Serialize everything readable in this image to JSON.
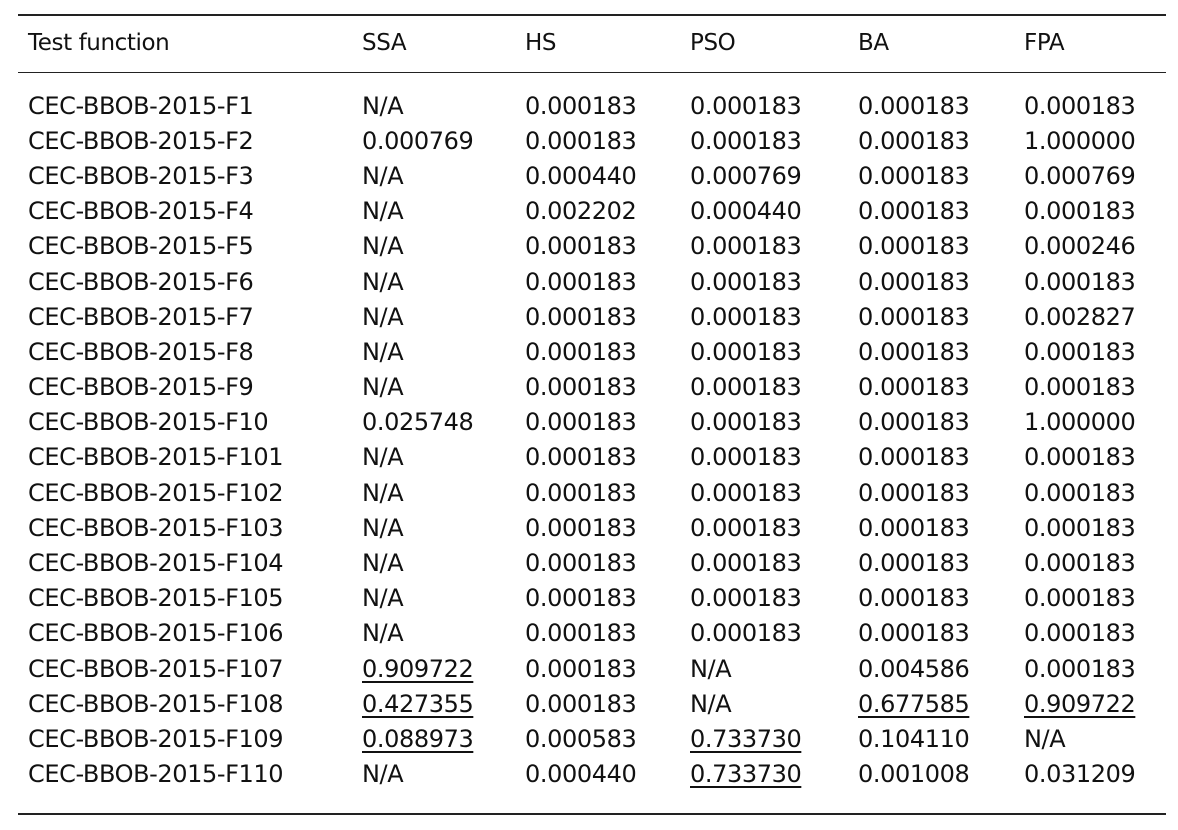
{
  "table": {
    "headers": [
      "Test function",
      "SSA",
      "HS",
      "PSO",
      "BA",
      "FPA"
    ],
    "rows": [
      [
        "CEC-BBOB-2015-F1",
        "N/A",
        "0.000183",
        "0.000183",
        "0.000183",
        "0.000183"
      ],
      [
        "CEC-BBOB-2015-F2",
        "0.000769",
        "0.000183",
        "0.000183",
        "0.000183",
        "1.000000"
      ],
      [
        "CEC-BBOB-2015-F3",
        "N/A",
        "0.000440",
        "0.000769",
        "0.000183",
        "0.000769"
      ],
      [
        "CEC-BBOB-2015-F4",
        "N/A",
        "0.002202",
        "0.000440",
        "0.000183",
        "0.000183"
      ],
      [
        "CEC-BBOB-2015-F5",
        "N/A",
        "0.000183",
        "0.000183",
        "0.000183",
        "0.000246"
      ],
      [
        "CEC-BBOB-2015-F6",
        "N/A",
        "0.000183",
        "0.000183",
        "0.000183",
        "0.000183"
      ],
      [
        "CEC-BBOB-2015-F7",
        "N/A",
        "0.000183",
        "0.000183",
        "0.000183",
        "0.002827"
      ],
      [
        "CEC-BBOB-2015-F8",
        "N/A",
        "0.000183",
        "0.000183",
        "0.000183",
        "0.000183"
      ],
      [
        "CEC-BBOB-2015-F9",
        "N/A",
        "0.000183",
        "0.000183",
        "0.000183",
        "0.000183"
      ],
      [
        "CEC-BBOB-2015-F10",
        "0.025748",
        "0.000183",
        "0.000183",
        "0.000183",
        "1.000000"
      ],
      [
        "CEC-BBOB-2015-F101",
        "N/A",
        "0.000183",
        "0.000183",
        "0.000183",
        "0.000183"
      ],
      [
        "CEC-BBOB-2015-F102",
        "N/A",
        "0.000183",
        "0.000183",
        "0.000183",
        "0.000183"
      ],
      [
        "CEC-BBOB-2015-F103",
        "N/A",
        "0.000183",
        "0.000183",
        "0.000183",
        "0.000183"
      ],
      [
        "CEC-BBOB-2015-F104",
        "N/A",
        "0.000183",
        "0.000183",
        "0.000183",
        "0.000183"
      ],
      [
        "CEC-BBOB-2015-F105",
        "N/A",
        "0.000183",
        "0.000183",
        "0.000183",
        "0.000183"
      ],
      [
        "CEC-BBOB-2015-F106",
        "N/A",
        "0.000183",
        "0.000183",
        "0.000183",
        "0.000183"
      ],
      [
        "CEC-BBOB-2015-F107",
        "0.909722",
        "0.000183",
        "N/A",
        "0.004586",
        "0.000183"
      ],
      [
        "CEC-BBOB-2015-F108",
        "0.427355",
        "0.000183",
        "N/A",
        "0.677585",
        "0.909722"
      ],
      [
        "CEC-BBOB-2015-F109",
        "0.088973",
        "0.000583",
        "0.733730",
        "0.104110",
        "N/A"
      ],
      [
        "CEC-BBOB-2015-F110",
        "N/A",
        "0.000440",
        "0.733730",
        "0.001008",
        "0.031209"
      ]
    ],
    "underlined_cells": [
      [
        16,
        1
      ],
      [
        17,
        1
      ],
      [
        17,
        4
      ],
      [
        17,
        5
      ],
      [
        18,
        1
      ],
      [
        18,
        3
      ],
      [
        19,
        3
      ]
    ]
  }
}
